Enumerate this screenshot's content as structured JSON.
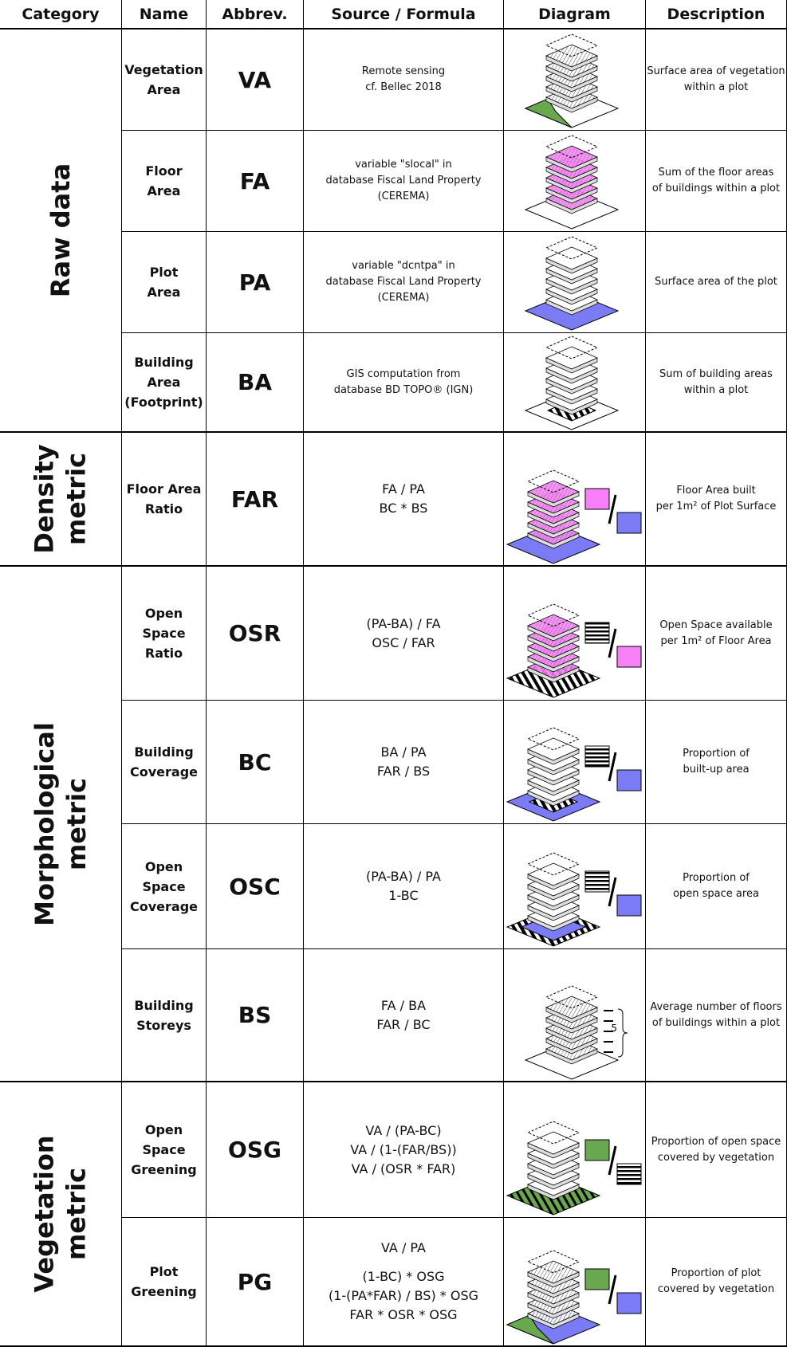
{
  "header": [
    "Category",
    "Name",
    "Abbrev.",
    "Source / Formula",
    "Diagram",
    "Description"
  ],
  "groups": [
    {
      "category": [
        "Raw data"
      ],
      "rows": [
        {
          "name": [
            "Vegetation",
            "Area"
          ],
          "abbrev": "VA",
          "source": [
            [
              "Remote sensing",
              "cf. Bellec 2018"
            ]
          ],
          "description": [
            "Surface area of vegetation",
            "within a plot"
          ]
        },
        {
          "name": [
            "Floor",
            "Area"
          ],
          "abbrev": "FA",
          "source": [
            [
              "variable \"slocal\" in",
              "database Fiscal Land Property",
              "(CEREMA)"
            ]
          ],
          "description": [
            "Sum of the floor areas",
            "of buildings within a plot"
          ]
        },
        {
          "name": [
            "Plot",
            "Area"
          ],
          "abbrev": "PA",
          "source": [
            [
              "variable \"dcntpa\" in",
              "database Fiscal Land Property",
              "(CEREMA)"
            ]
          ],
          "description": [
            "Surface area of the plot"
          ]
        },
        {
          "name": [
            "Building",
            "Area",
            "(Footprint)"
          ],
          "abbrev": "BA",
          "source": [
            [
              "GIS computation from",
              "database BD TOPO® (IGN)"
            ]
          ],
          "description": [
            "Sum of building areas",
            "within a plot"
          ]
        }
      ]
    },
    {
      "category": [
        "Density",
        "metric"
      ],
      "rows": [
        {
          "name": [
            "Floor Area",
            "Ratio"
          ],
          "abbrev": "FAR",
          "source": [
            [
              "FA / PA",
              "BC * BS"
            ]
          ],
          "description": [
            "Floor Area built",
            "per 1m² of Plot Surface"
          ]
        }
      ]
    },
    {
      "category": [
        "Morphological",
        "metric"
      ],
      "rows": [
        {
          "name": [
            "Open Space",
            "Ratio"
          ],
          "abbrev": "OSR",
          "source": [
            [
              "(PA-BA) / FA",
              "OSC / FAR"
            ]
          ],
          "description": [
            "Open Space available",
            "per 1m² of Floor Area"
          ]
        },
        {
          "name": [
            "Building",
            "Coverage"
          ],
          "abbrev": "BC",
          "source": [
            [
              "BA / PA",
              "FAR / BS"
            ]
          ],
          "description": [
            "Proportion of",
            "built-up area"
          ]
        },
        {
          "name": [
            "Open",
            "Space",
            "Coverage"
          ],
          "abbrev": "OSC",
          "source": [
            [
              "(PA-BA) / PA",
              "1-BC"
            ]
          ],
          "description": [
            "Proportion of",
            "open space area"
          ]
        },
        {
          "name": [
            "Building",
            "Storeys"
          ],
          "abbrev": "BS",
          "source": [
            [
              "FA / BA",
              "FAR / BC"
            ]
          ],
          "diagram_label": "5",
          "description": [
            "Average number of floors",
            "of buildings within a plot"
          ]
        }
      ]
    },
    {
      "category": [
        "Vegetation",
        "metric"
      ],
      "rows": [
        {
          "name": [
            "Open Space",
            "Greening"
          ],
          "abbrev": "OSG",
          "source": [
            [
              "VA / (PA-BC)",
              "VA / (1-(FAR/BS))",
              "VA / (OSR * FAR)"
            ]
          ],
          "description": [
            "Proportion of open space",
            "covered by vegetation"
          ]
        },
        {
          "name": [
            "Plot",
            "Greening"
          ],
          "abbrev": "PG",
          "source": [
            [
              "VA / PA"
            ],
            [
              "(1-BC) * OSG",
              "(1-(PA*FAR) / BS) * OSG",
              "FAR * OSR * OSG"
            ]
          ],
          "description": [
            "Proportion of plot",
            "covered by vegetation"
          ]
        }
      ]
    }
  ]
}
